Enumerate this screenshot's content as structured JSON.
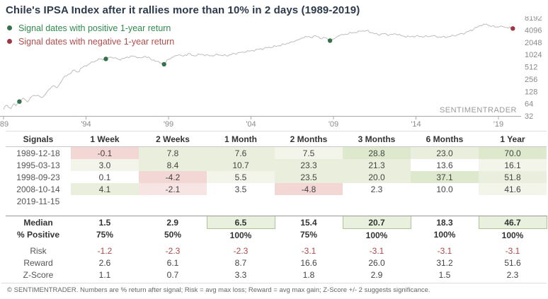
{
  "title": "Chile's IPSA Index after it rallies more than 10% in 2 days (1989-2019)",
  "legend": [
    {
      "label": "Signal dates with positive 1-year return",
      "dot_color": "#35714b"
    },
    {
      "label": "Signal dates with negative 1-year return",
      "dot_color": "#9e3644"
    }
  ],
  "watermark": "SENTIMENTRADER",
  "colors": {
    "line": "#bdbdbd",
    "axis": "#a9a9a9",
    "tick_text": "#8a8a8a",
    "signal_green": "#35714b",
    "signal_red": "#9e3644",
    "title_text": "#2d3a4b"
  },
  "chart_data": {
    "type": "line",
    "title": "Chile's IPSA Index, 1989-2019, log2 scale",
    "y_scale": "log2",
    "ylim": [
      32,
      8192
    ],
    "x_range": [
      1989,
      2020.3
    ],
    "x_ticks": [
      {
        "year": 1989,
        "label": "'89"
      },
      {
        "year": 1994,
        "label": "'94"
      },
      {
        "year": 1999,
        "label": "'99"
      },
      {
        "year": 2004,
        "label": "'04"
      },
      {
        "year": 2009,
        "label": "'09"
      },
      {
        "year": 2014,
        "label": "'14"
      },
      {
        "year": 2019,
        "label": "'19"
      }
    ],
    "y_ticks": [
      8192,
      4096,
      2048,
      1024,
      512,
      256,
      128,
      64,
      32
    ],
    "series": [
      {
        "name": "IPSA Index",
        "points": [
          [
            1989.0,
            46
          ],
          [
            1989.15,
            58
          ],
          [
            1989.3,
            52
          ],
          [
            1989.45,
            48
          ],
          [
            1989.6,
            62
          ],
          [
            1989.75,
            57
          ],
          [
            1989.96,
            72
          ],
          [
            1990.1,
            80
          ],
          [
            1990.25,
            84
          ],
          [
            1990.45,
            70
          ],
          [
            1990.7,
            95
          ],
          [
            1990.9,
            100
          ],
          [
            1991.1,
            103
          ],
          [
            1991.3,
            90
          ],
          [
            1991.55,
            110
          ],
          [
            1991.75,
            143
          ],
          [
            1992.0,
            175
          ],
          [
            1992.25,
            157
          ],
          [
            1992.6,
            263
          ],
          [
            1992.9,
            330
          ],
          [
            1993.1,
            362
          ],
          [
            1993.3,
            430
          ],
          [
            1993.5,
            380
          ],
          [
            1993.85,
            525
          ],
          [
            1994.15,
            590
          ],
          [
            1994.4,
            670
          ],
          [
            1994.6,
            725
          ],
          [
            1994.85,
            785
          ],
          [
            1995.2,
            800
          ],
          [
            1995.45,
            885
          ],
          [
            1995.75,
            850
          ],
          [
            1996.1,
            755
          ],
          [
            1996.5,
            890
          ],
          [
            1996.9,
            925
          ],
          [
            1997.3,
            850
          ],
          [
            1997.6,
            925
          ],
          [
            1997.9,
            800
          ],
          [
            1998.3,
            700
          ],
          [
            1998.73,
            590
          ],
          [
            1999.0,
            785
          ],
          [
            1999.3,
            890
          ],
          [
            1999.6,
            1000
          ],
          [
            1999.9,
            930
          ],
          [
            2000.2,
            1085
          ],
          [
            2000.5,
            960
          ],
          [
            2001.0,
            1040
          ],
          [
            2001.5,
            945
          ],
          [
            2002.0,
            1010
          ],
          [
            2002.5,
            955
          ],
          [
            2003.0,
            1085
          ],
          [
            2003.5,
            1180
          ],
          [
            2004.0,
            1270
          ],
          [
            2004.5,
            1380
          ],
          [
            2005.0,
            1500
          ],
          [
            2005.5,
            1620
          ],
          [
            2006.0,
            1830
          ],
          [
            2006.5,
            2100
          ],
          [
            2007.0,
            2500
          ],
          [
            2007.3,
            2860
          ],
          [
            2007.6,
            2700
          ],
          [
            2007.9,
            2980
          ],
          [
            2008.2,
            2520
          ],
          [
            2008.5,
            2640
          ],
          [
            2008.79,
            2240
          ],
          [
            2009.0,
            2440
          ],
          [
            2009.3,
            2900
          ],
          [
            2009.7,
            3240
          ],
          [
            2010.2,
            3500
          ],
          [
            2010.7,
            3800
          ],
          [
            2011.0,
            3960
          ],
          [
            2011.3,
            3520
          ],
          [
            2011.7,
            3120
          ],
          [
            2012.0,
            3300
          ],
          [
            2012.4,
            3120
          ],
          [
            2012.8,
            3240
          ],
          [
            2013.2,
            2920
          ],
          [
            2013.6,
            2790
          ],
          [
            2014.0,
            2920
          ],
          [
            2014.5,
            2790
          ],
          [
            2015.0,
            2920
          ],
          [
            2015.5,
            2710
          ],
          [
            2016.0,
            2810
          ],
          [
            2016.5,
            3120
          ],
          [
            2017.0,
            3500
          ],
          [
            2017.5,
            4300
          ],
          [
            2017.9,
            5260
          ],
          [
            2018.1,
            5690
          ],
          [
            2018.35,
            5420
          ],
          [
            2018.6,
            5060
          ],
          [
            2018.9,
            4880
          ],
          [
            2019.2,
            5120
          ],
          [
            2019.5,
            4720
          ],
          [
            2019.87,
            4450
          ],
          [
            2019.95,
            4500
          ]
        ]
      }
    ],
    "signals": [
      {
        "date": "1989-12-18",
        "x": 1989.96,
        "y": 72,
        "positive": true
      },
      {
        "date": "1995-03-13",
        "x": 1995.2,
        "y": 800,
        "positive": true
      },
      {
        "date": "1998-09-23",
        "x": 1998.73,
        "y": 590,
        "positive": true
      },
      {
        "date": "2008-10-14",
        "x": 2008.79,
        "y": 2240,
        "positive": true
      },
      {
        "date": "2019-11-15",
        "x": 2019.87,
        "y": 4450,
        "positive": false
      }
    ]
  },
  "table": {
    "headers": [
      "Signals",
      "1 Week",
      "2 Weeks",
      "1 Month",
      "2 Months",
      "3 Months",
      "6 Months",
      "1 Year"
    ],
    "date_rows": [
      {
        "label": "1989-12-18",
        "cells": [
          [
            "-0.1",
            "r2"
          ],
          [
            "7.8",
            "g1"
          ],
          [
            "7.6",
            "g1"
          ],
          [
            "7.5",
            "g0"
          ],
          [
            "28.8",
            "g2"
          ],
          [
            "23.0",
            "g1"
          ],
          [
            "70.0",
            "g2"
          ]
        ]
      },
      {
        "label": "1995-03-13",
        "cells": [
          [
            "3.0",
            "g0"
          ],
          [
            "8.4",
            "g1"
          ],
          [
            "10.7",
            "g1"
          ],
          [
            "23.3",
            "g1"
          ],
          [
            "21.3",
            "g1"
          ],
          [
            "13.6",
            "w"
          ],
          [
            "16.1",
            "g0"
          ]
        ]
      },
      {
        "label": "1998-09-23",
        "cells": [
          [
            "0.1",
            "w"
          ],
          [
            "-4.2",
            "r2"
          ],
          [
            "5.5",
            "g0"
          ],
          [
            "23.5",
            "g1"
          ],
          [
            "20.0",
            "g1"
          ],
          [
            "37.1",
            "g2"
          ],
          [
            "51.8",
            "g1"
          ]
        ]
      },
      {
        "label": "2008-10-14",
        "cells": [
          [
            "4.1",
            "g1"
          ],
          [
            "-2.1",
            "r1"
          ],
          [
            "3.5",
            "w"
          ],
          [
            "-4.8",
            "r2"
          ],
          [
            "2.3",
            "w"
          ],
          [
            "10.0",
            "w"
          ],
          [
            "41.6",
            "g0"
          ]
        ]
      },
      {
        "label": "2019-11-15",
        "cells": [
          [
            "",
            ""
          ],
          [
            "",
            ""
          ],
          [
            "",
            ""
          ],
          [
            "",
            ""
          ],
          [
            "",
            ""
          ],
          [
            "",
            ""
          ],
          [
            "",
            ""
          ]
        ]
      }
    ],
    "summary_rows": [
      {
        "label": "Median",
        "style": "bold",
        "cells": [
          [
            "1.5",
            ""
          ],
          [
            "2.9",
            ""
          ],
          [
            "6.5",
            "box"
          ],
          [
            "15.4",
            ""
          ],
          [
            "20.7",
            "box"
          ],
          [
            "18.3",
            ""
          ],
          [
            "46.7",
            "box"
          ]
        ]
      },
      {
        "label": "% Positive",
        "style": "bold",
        "cells": [
          [
            "75%",
            ""
          ],
          [
            "50%",
            ""
          ],
          [
            "100%",
            ""
          ],
          [
            "75%",
            ""
          ],
          [
            "100%",
            ""
          ],
          [
            "100%",
            ""
          ],
          [
            "100%",
            ""
          ]
        ]
      },
      {
        "label": "Risk",
        "style": "red",
        "gap_before": true,
        "cells": [
          [
            "-1.2",
            ""
          ],
          [
            "-2.3",
            ""
          ],
          [
            "-2.3",
            ""
          ],
          [
            "-3.1",
            ""
          ],
          [
            "-3.1",
            ""
          ],
          [
            "-3.1",
            ""
          ],
          [
            "-3.1",
            ""
          ]
        ]
      },
      {
        "label": "Reward",
        "style": "",
        "cells": [
          [
            "2.6",
            ""
          ],
          [
            "6.1",
            ""
          ],
          [
            "8.7",
            ""
          ],
          [
            "16.6",
            ""
          ],
          [
            "26.0",
            ""
          ],
          [
            "31.2",
            ""
          ],
          [
            "51.6",
            ""
          ]
        ]
      },
      {
        "label": "Z-Score",
        "style": "",
        "cells": [
          [
            "1.1",
            ""
          ],
          [
            "0.7",
            ""
          ],
          [
            "3.3",
            ""
          ],
          [
            "1.8",
            ""
          ],
          [
            "2.9",
            ""
          ],
          [
            "1.5",
            ""
          ],
          [
            "2.3",
            ""
          ]
        ]
      }
    ]
  },
  "footer": "© SENTIMENTRADER. Numbers are % return after signal; Risk = avg max loss; Reward = avg max gain; Z-Score +/- 2 suggests significance."
}
